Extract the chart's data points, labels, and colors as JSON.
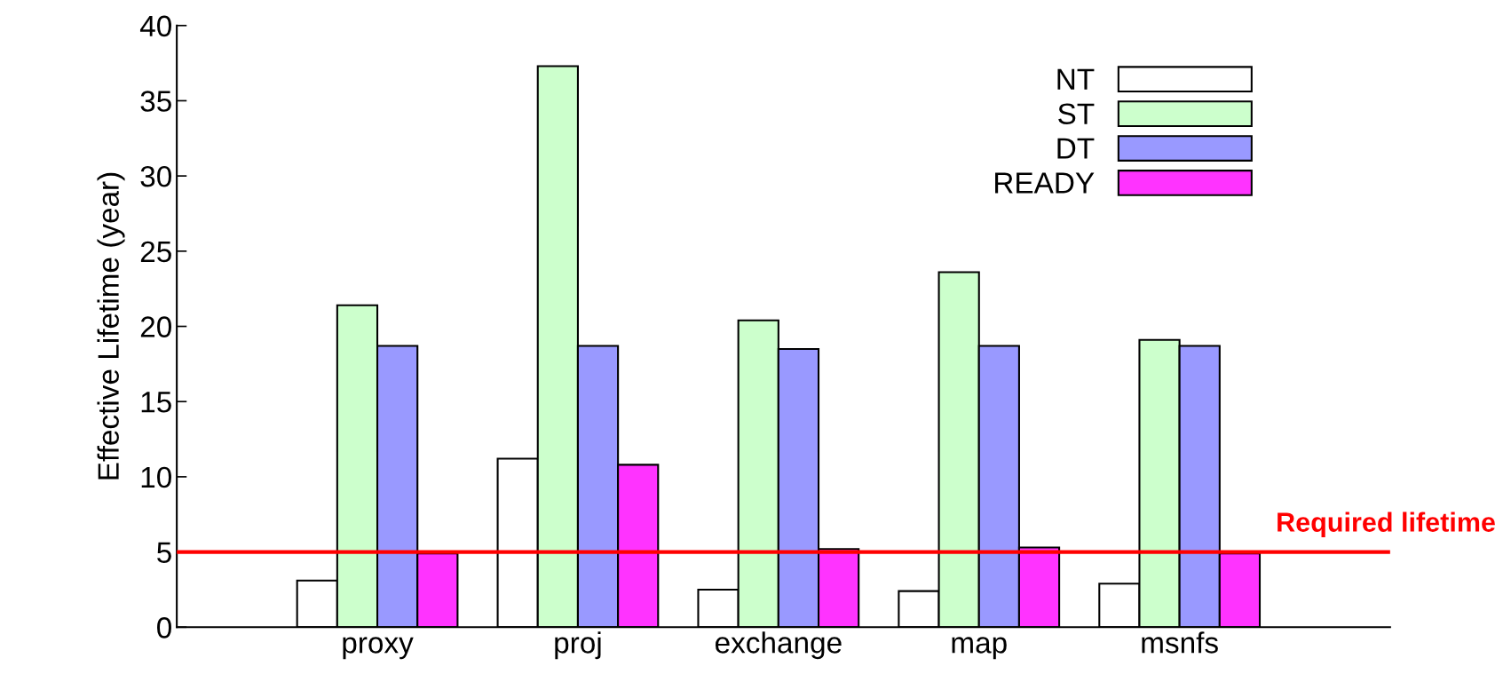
{
  "chart_data": {
    "type": "bar",
    "ylabel": "Effective Lifetime (year)",
    "categories": [
      "proxy",
      "proj",
      "exchange",
      "map",
      "msnfs"
    ],
    "series": [
      {
        "name": "NT",
        "color": "#ffffff",
        "values": [
          3.1,
          11.2,
          2.5,
          2.4,
          2.9
        ]
      },
      {
        "name": "ST",
        "color": "#ccffcc",
        "values": [
          21.4,
          37.3,
          20.4,
          23.6,
          19.1
        ]
      },
      {
        "name": "DT",
        "color": "#9999ff",
        "values": [
          18.7,
          18.7,
          18.5,
          18.7,
          18.7
        ]
      },
      {
        "name": "READY",
        "color": "#ff33ff",
        "values": [
          4.9,
          10.8,
          5.2,
          5.3,
          4.9
        ]
      }
    ],
    "ylim": [
      0,
      40
    ],
    "yticks": [
      0,
      5,
      10,
      15,
      20,
      25,
      30,
      35,
      40
    ],
    "ref_lines": [
      {
        "axis": "y",
        "value": 5,
        "label": "Required lifetime",
        "color": "#ff0000"
      }
    ],
    "grid": false,
    "legend": "top right"
  }
}
